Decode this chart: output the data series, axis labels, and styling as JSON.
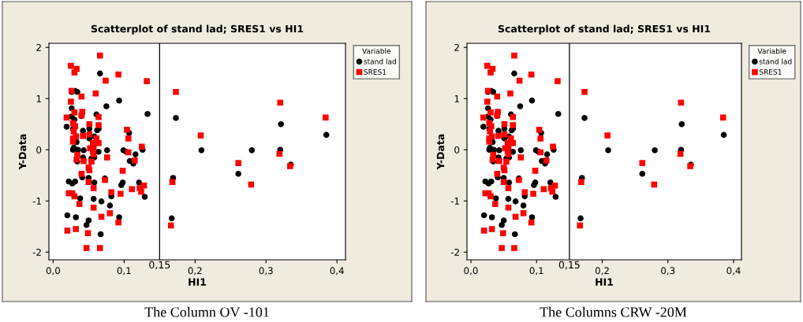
{
  "chart_data": [
    {
      "type": "scatter",
      "title": "Scatterplot of stand lad; SRES1 vs HI1",
      "xlabel": "HI1",
      "ylabel": "Y-Data",
      "legend_title": "Variable",
      "legend": "top right",
      "grid": false,
      "xlim": [
        -0.006,
        0.412
      ],
      "ylim": [
        -2.15,
        2.08
      ],
      "xticks": [
        {
          "value": 0.0,
          "label": "0,0"
        },
        {
          "value": 0.1,
          "label": "0,1"
        },
        {
          "value": 0.2,
          "label": "0,2"
        },
        {
          "value": 0.3,
          "label": "0,3"
        },
        {
          "value": 0.4,
          "label": "0,4"
        }
      ],
      "yticks": [
        -2,
        -1,
        0,
        1,
        2
      ],
      "ref_lines": [
        {
          "axis": "x",
          "value": 0.15,
          "label": "0,15",
          "color": "#000000"
        }
      ],
      "annotations": [
        "The Column OV -101"
      ],
      "series": [
        {
          "name": "stand lad",
          "color": "#000000",
          "marker": "circle",
          "x": [
            0.019,
            0.026,
            0.026,
            0.031,
            0.034,
            0.026,
            0.03,
            0.028,
            0.04,
            0.042,
            0.033,
            0.029,
            0.028,
            0.035,
            0.043,
            0.042,
            0.034,
            0.022,
            0.027,
            0.031,
            0.038,
            0.02,
            0.032,
            0.05,
            0.047,
            0.067,
            0.041,
            0.05,
            0.058,
            0.057,
            0.068,
            0.051,
            0.051,
            0.058,
            0.061,
            0.062,
            0.064,
            0.066,
            0.075,
            0.064,
            0.058,
            0.054,
            0.076,
            0.073,
            0.082,
            0.08,
            0.093,
            0.093,
            0.096,
            0.098,
            0.099,
            0.103,
            0.107,
            0.108,
            0.113,
            0.116,
            0.126,
            0.121,
            0.129,
            0.133,
            0.173,
            0.169,
            0.167,
            0.209,
            0.261,
            0.28,
            0.321,
            0.32,
            0.335,
            0.385
          ],
          "values": [
            0.45,
            0.81,
            1.13,
            1.15,
            1.13,
            0.65,
            0.59,
            0.41,
            0.66,
            0.37,
            0.15,
            0.04,
            0.0,
            0.0,
            -0.01,
            -0.15,
            -0.23,
            -0.62,
            -0.66,
            -0.62,
            -0.95,
            -1.28,
            -1.32,
            -1.38,
            -1.47,
            -1.65,
            -0.54,
            -0.55,
            -0.64,
            -0.96,
            -1.01,
            0.41,
            0.22,
            0.26,
            0.69,
            0.38,
            0.41,
            1.49,
            0.85,
            -0.04,
            -0.15,
            -0.17,
            -0.01,
            -0.56,
            -0.91,
            -1.09,
            -1.32,
            0.96,
            -0.69,
            -0.64,
            -0.01,
            -0.04,
            0.33,
            -0.22,
            -0.27,
            -0.09,
            0.0,
            -0.64,
            -0.92,
            0.7,
            0.62,
            -0.55,
            -1.34,
            -0.01,
            -0.47,
            -0.01,
            0.5,
            0.0,
            -0.29,
            0.29
          ]
        },
        {
          "name": "SRES1",
          "color": "#ff0000",
          "marker": "square",
          "x": [
            0.066,
            0.025,
            0.033,
            0.03,
            0.074,
            0.092,
            0.132,
            0.026,
            0.04,
            0.06,
            0.025,
            0.019,
            0.03,
            0.041,
            0.04,
            0.064,
            0.064,
            0.028,
            0.031,
            0.029,
            0.051,
            0.051,
            0.042,
            0.032,
            0.028,
            0.028,
            0.061,
            0.064,
            0.056,
            0.057,
            0.052,
            0.056,
            0.057,
            0.034,
            0.033,
            0.043,
            0.054,
            0.05,
            0.051,
            0.04,
            0.05,
            0.073,
            0.076,
            0.104,
            0.106,
            0.106,
            0.098,
            0.115,
            0.125,
            0.128,
            0.122,
            0.124,
            0.111,
            0.095,
            0.082,
            0.057,
            0.022,
            0.027,
            0.03,
            0.037,
            0.057,
            0.08,
            0.068,
            0.092,
            0.02,
            0.032,
            0.049,
            0.047,
            0.066,
            0.173,
            0.168,
            0.166,
            0.208,
            0.261,
            0.279,
            0.32,
            0.319,
            0.334,
            0.384
          ],
          "values": [
            1.84,
            1.64,
            1.58,
            1.51,
            1.35,
            1.47,
            1.34,
            1.15,
            1.04,
            1.1,
            0.94,
            0.63,
            0.73,
            0.74,
            0.67,
            0.64,
            0.48,
            0.52,
            0.46,
            0.36,
            0.5,
            0.3,
            0.27,
            0.26,
            0.22,
            0.16,
            0.22,
            0.13,
            0.13,
            0.05,
            0.03,
            -0.03,
            -0.09,
            -0.1,
            -0.19,
            -0.22,
            -0.23,
            -0.35,
            -0.4,
            -0.47,
            -0.63,
            -0.59,
            -0.15,
            0.39,
            0.22,
            -0.05,
            -0.41,
            -0.21,
            0.06,
            -0.7,
            -0.75,
            -0.82,
            -0.77,
            -0.86,
            -0.83,
            -0.75,
            -0.85,
            -0.85,
            -0.91,
            -1.06,
            -1.13,
            -1.24,
            -1.31,
            -1.42,
            -1.58,
            -1.55,
            -1.63,
            -1.92,
            -1.92,
            1.13,
            -0.63,
            -1.48,
            0.28,
            -0.26,
            -0.68,
            0.92,
            -0.08,
            -0.32,
            0.63
          ]
        }
      ]
    },
    {
      "type": "scatter",
      "title": "Scatterplot of stand lad; SRES1 vs HI1",
      "xlabel": "HI1",
      "ylabel": "Y-Data",
      "legend_title": "Variable",
      "legend": "top right",
      "grid": false,
      "xlim": [
        -0.006,
        0.412
      ],
      "ylim": [
        -2.15,
        2.08
      ],
      "xticks": [
        {
          "value": 0.0,
          "label": "0,0"
        },
        {
          "value": 0.1,
          "label": "0,1"
        },
        {
          "value": 0.2,
          "label": "0,2"
        },
        {
          "value": 0.3,
          "label": "0,3"
        },
        {
          "value": 0.4,
          "label": "0,4"
        }
      ],
      "yticks": [
        -2,
        -1,
        0,
        1,
        2
      ],
      "ref_lines": [
        {
          "axis": "x",
          "value": 0.15,
          "label": "0,15",
          "color": "#000000"
        }
      ],
      "annotations": [
        "The Columns CRW -20M"
      ],
      "series": [
        {
          "name": "stand lad",
          "color": "#000000",
          "marker": "circle",
          "x": [
            0.019,
            0.026,
            0.026,
            0.031,
            0.034,
            0.026,
            0.03,
            0.028,
            0.04,
            0.042,
            0.033,
            0.029,
            0.028,
            0.035,
            0.043,
            0.042,
            0.034,
            0.022,
            0.027,
            0.031,
            0.038,
            0.02,
            0.032,
            0.05,
            0.047,
            0.067,
            0.041,
            0.05,
            0.058,
            0.057,
            0.068,
            0.051,
            0.051,
            0.058,
            0.061,
            0.062,
            0.064,
            0.066,
            0.075,
            0.064,
            0.058,
            0.054,
            0.076,
            0.073,
            0.082,
            0.08,
            0.093,
            0.093,
            0.096,
            0.098,
            0.099,
            0.103,
            0.107,
            0.108,
            0.113,
            0.116,
            0.126,
            0.121,
            0.129,
            0.133,
            0.173,
            0.169,
            0.167,
            0.209,
            0.261,
            0.28,
            0.321,
            0.32,
            0.335,
            0.385
          ],
          "values": [
            0.45,
            0.81,
            1.13,
            1.15,
            1.13,
            0.65,
            0.59,
            0.41,
            0.66,
            0.37,
            0.15,
            0.04,
            0.0,
            0.0,
            -0.01,
            -0.15,
            -0.23,
            -0.62,
            -0.66,
            -0.62,
            -0.95,
            -1.28,
            -1.32,
            -1.38,
            -1.47,
            -1.65,
            -0.54,
            -0.55,
            -0.64,
            -0.96,
            -1.01,
            0.41,
            0.22,
            0.26,
            0.69,
            0.38,
            0.41,
            1.49,
            0.85,
            -0.04,
            -0.15,
            -0.17,
            -0.01,
            -0.56,
            -0.91,
            -1.09,
            -1.32,
            0.96,
            -0.69,
            -0.64,
            -0.01,
            -0.04,
            0.33,
            -0.22,
            -0.27,
            -0.09,
            0.0,
            -0.64,
            -0.92,
            0.7,
            0.62,
            -0.55,
            -1.34,
            -0.01,
            -0.47,
            -0.01,
            0.5,
            0.0,
            -0.29,
            0.29
          ]
        },
        {
          "name": "SRES1",
          "color": "#ff0000",
          "marker": "square",
          "x": [
            0.066,
            0.025,
            0.033,
            0.03,
            0.074,
            0.092,
            0.132,
            0.026,
            0.04,
            0.06,
            0.025,
            0.019,
            0.03,
            0.041,
            0.04,
            0.064,
            0.064,
            0.028,
            0.031,
            0.029,
            0.051,
            0.051,
            0.042,
            0.032,
            0.028,
            0.028,
            0.061,
            0.064,
            0.056,
            0.057,
            0.052,
            0.056,
            0.057,
            0.034,
            0.033,
            0.043,
            0.054,
            0.05,
            0.051,
            0.04,
            0.05,
            0.073,
            0.076,
            0.104,
            0.106,
            0.106,
            0.098,
            0.115,
            0.125,
            0.128,
            0.122,
            0.124,
            0.111,
            0.095,
            0.082,
            0.057,
            0.022,
            0.027,
            0.03,
            0.037,
            0.057,
            0.08,
            0.068,
            0.092,
            0.02,
            0.032,
            0.049,
            0.047,
            0.066,
            0.173,
            0.168,
            0.166,
            0.208,
            0.261,
            0.279,
            0.32,
            0.319,
            0.334,
            0.384
          ],
          "values": [
            1.84,
            1.64,
            1.58,
            1.51,
            1.35,
            1.47,
            1.34,
            1.15,
            1.04,
            1.1,
            0.94,
            0.63,
            0.73,
            0.74,
            0.67,
            0.64,
            0.48,
            0.52,
            0.46,
            0.36,
            0.5,
            0.3,
            0.27,
            0.26,
            0.22,
            0.16,
            0.22,
            0.13,
            0.13,
            0.05,
            0.03,
            -0.03,
            -0.09,
            -0.1,
            -0.19,
            -0.22,
            -0.23,
            -0.35,
            -0.4,
            -0.47,
            -0.63,
            -0.59,
            -0.15,
            0.39,
            0.22,
            -0.05,
            -0.41,
            -0.21,
            0.06,
            -0.7,
            -0.75,
            -0.82,
            -0.77,
            -0.86,
            -0.83,
            -0.75,
            -0.85,
            -0.85,
            -0.91,
            -1.06,
            -1.13,
            -1.24,
            -1.31,
            -1.42,
            -1.58,
            -1.55,
            -1.63,
            -1.92,
            -1.92,
            1.13,
            -0.63,
            -1.48,
            0.28,
            -0.26,
            -0.68,
            0.92,
            -0.08,
            -0.32,
            0.63
          ]
        }
      ]
    }
  ]
}
